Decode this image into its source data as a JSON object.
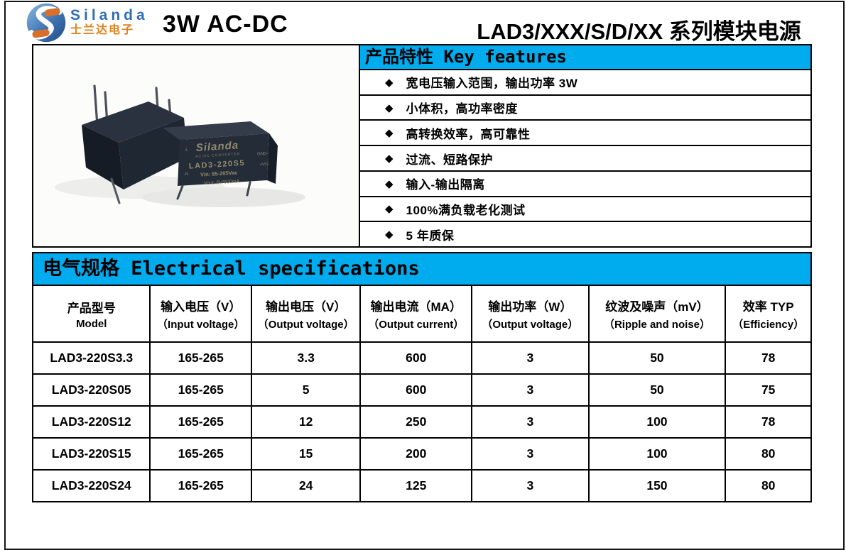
{
  "colors": {
    "accent_blue": "#00ABEE"
  },
  "header": {
    "logo_name": "Silanda",
    "logo_subtitle": "士兰达电子",
    "product_class": "3W AC-DC",
    "series_title": "LAD3/XXX/S/D/XX 系列模块电源"
  },
  "features": {
    "title": "产品特性 Key features",
    "bullet": "◆",
    "items": [
      "宽电压输入范围，输出功率 3W",
      "小体积，高功率密度",
      "高转换效率，高可靠性",
      "过流、短路保护",
      "输入-输出隔离",
      "100%满负载老化测试",
      "5 年质保"
    ]
  },
  "product_image": {
    "brand": "Silanda",
    "type_label": "AC/DC CONVERTER",
    "model": "LAD3-220S5",
    "vin": "Vin: 85-265Vac",
    "vout": "Vout: 5V/600mA",
    "pins_left": [
      "-L",
      "-N"
    ],
    "pins_right": [
      "GND-",
      "+VO-"
    ]
  },
  "specs": {
    "title": "电气规格 Electrical specifications",
    "columns": [
      {
        "zh": "产品型号",
        "en": "Model"
      },
      {
        "zh": "输入电压（V）",
        "en": "（Input voltage）"
      },
      {
        "zh": "输出电压（V）",
        "en": "（Output voltage）"
      },
      {
        "zh": "输出电流（MA）",
        "en": "（Output current）"
      },
      {
        "zh": "输出功率（W）",
        "en": "（Output voltage）"
      },
      {
        "zh": "纹波及噪声（mV）",
        "en": "（Ripple and noise）"
      },
      {
        "zh": "效率 TYP",
        "en": "（Efficiency）"
      }
    ],
    "rows": [
      [
        "LAD3-220S3.3",
        "165-265",
        "3.3",
        "600",
        "3",
        "50",
        "78"
      ],
      [
        "LAD3-220S05",
        "165-265",
        "5",
        "600",
        "3",
        "50",
        "75"
      ],
      [
        "LAD3-220S12",
        "165-265",
        "12",
        "250",
        "3",
        "100",
        "78"
      ],
      [
        "LAD3-220S15",
        "165-265",
        "15",
        "200",
        "3",
        "100",
        "80"
      ],
      [
        "LAD3-220S24",
        "165-265",
        "24",
        "125",
        "3",
        "150",
        "80"
      ]
    ]
  }
}
